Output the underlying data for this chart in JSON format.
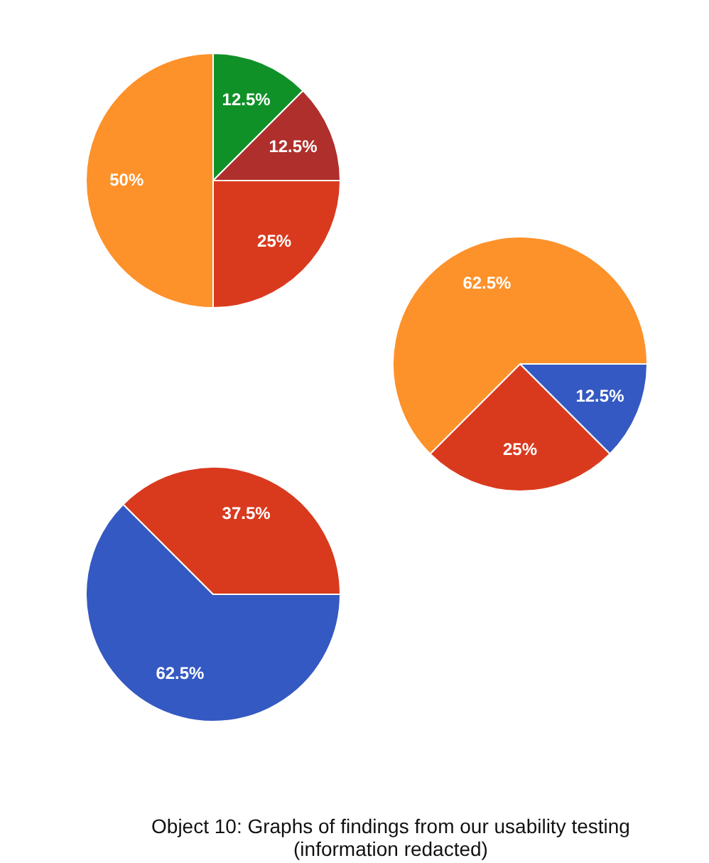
{
  "chart_data": [
    {
      "type": "pie",
      "categories": [
        null,
        null,
        null,
        null
      ],
      "values": [
        12.5,
        12.5,
        25,
        50
      ],
      "colors": [
        "#109128",
        "#ae2f2c",
        "#d93a1e",
        "#fd912a"
      ],
      "value_labels": [
        "12.5%",
        "12.5%",
        "25%",
        "50%"
      ],
      "legend": false
    },
    {
      "type": "pie",
      "categories": [
        null,
        null,
        null
      ],
      "values": [
        12.5,
        25,
        62.5
      ],
      "colors": [
        "#3459c2",
        "#d93a1e",
        "#fd912a"
      ],
      "value_labels": [
        "12.5%",
        "25%",
        "62.5%"
      ],
      "legend": false
    },
    {
      "type": "pie",
      "categories": [
        null,
        null
      ],
      "values": [
        62.5,
        37.5
      ],
      "colors": [
        "#3459c2",
        "#d93a1e"
      ],
      "value_labels": [
        "62.5%",
        "37.5%"
      ],
      "legend": false,
      "annotations": [
        "Object 10: Graphs of findings from our usability testing\n(information redacted)"
      ]
    }
  ]
}
